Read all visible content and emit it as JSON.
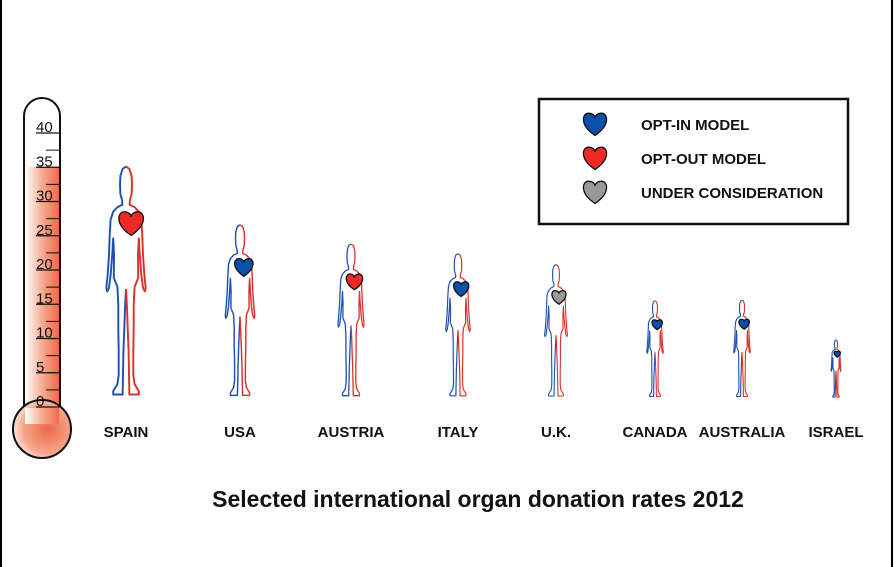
{
  "chart_data": {
    "type": "bar",
    "title": "Selected international organ donation rates 2012",
    "xlabel": "",
    "ylabel": "",
    "ylim": [
      0,
      40
    ],
    "yticks": [
      0,
      5,
      10,
      15,
      20,
      25,
      30,
      35,
      40
    ],
    "categories": [
      "SPAIN",
      "USA",
      "AUSTRIA",
      "ITALY",
      "U.K.",
      "CANADA",
      "AUSTRALIA",
      "ISRAEL"
    ],
    "values": [
      35.1,
      26.6,
      23.8,
      22.4,
      20.8,
      15.5,
      15.6,
      9.8
    ],
    "models": [
      "opt-out",
      "opt-in",
      "opt-out",
      "opt-in",
      "under-consideration",
      "opt-in",
      "opt-in",
      "opt-in"
    ],
    "legend": {
      "position": "top-right",
      "entries": [
        {
          "key": "opt-in",
          "label": "OPT-IN MODEL",
          "color": "#0a4faa"
        },
        {
          "key": "opt-out",
          "label": "OPT-OUT MODEL",
          "color": "#ee2a26"
        },
        {
          "key": "under-consideration",
          "label": "UNDER CONSIDERATION",
          "color": "#999999"
        }
      ]
    },
    "colors": {
      "body_left": "#1f4fb3",
      "body_right": "#d8322a",
      "thermometer_fill": "#f08060"
    }
  }
}
